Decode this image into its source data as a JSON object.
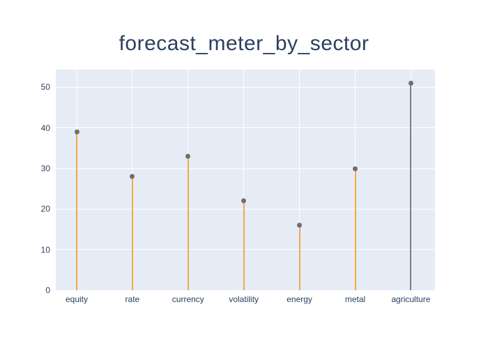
{
  "figure": {
    "title": "forecast_meter_by_sector"
  },
  "chart_data": {
    "type": "lollipop",
    "title": "forecast_meter_by_sector",
    "categories": [
      "equity",
      "rate",
      "currency",
      "volatility",
      "energy",
      "metal",
      "agriculture"
    ],
    "values": [
      39,
      28,
      33,
      22,
      16,
      30,
      51
    ],
    "stem_colors": [
      "#f5a742",
      "#f5a742",
      "#f5a742",
      "#f5a742",
      "#f5a742",
      "#f5a742",
      "#808080"
    ],
    "marker_color": "#6f6f6f",
    "xlabel": "",
    "ylabel": "",
    "yticks": [
      0,
      10,
      20,
      30,
      40,
      50
    ],
    "ylim": [
      0,
      54.35
    ],
    "grid": true,
    "legend": "none",
    "plot_bgcolor": "#e5ecf6",
    "paper_bgcolor": "#ffffff",
    "gridline_color": "#ffffff",
    "font_color": "#2a3f5f"
  }
}
